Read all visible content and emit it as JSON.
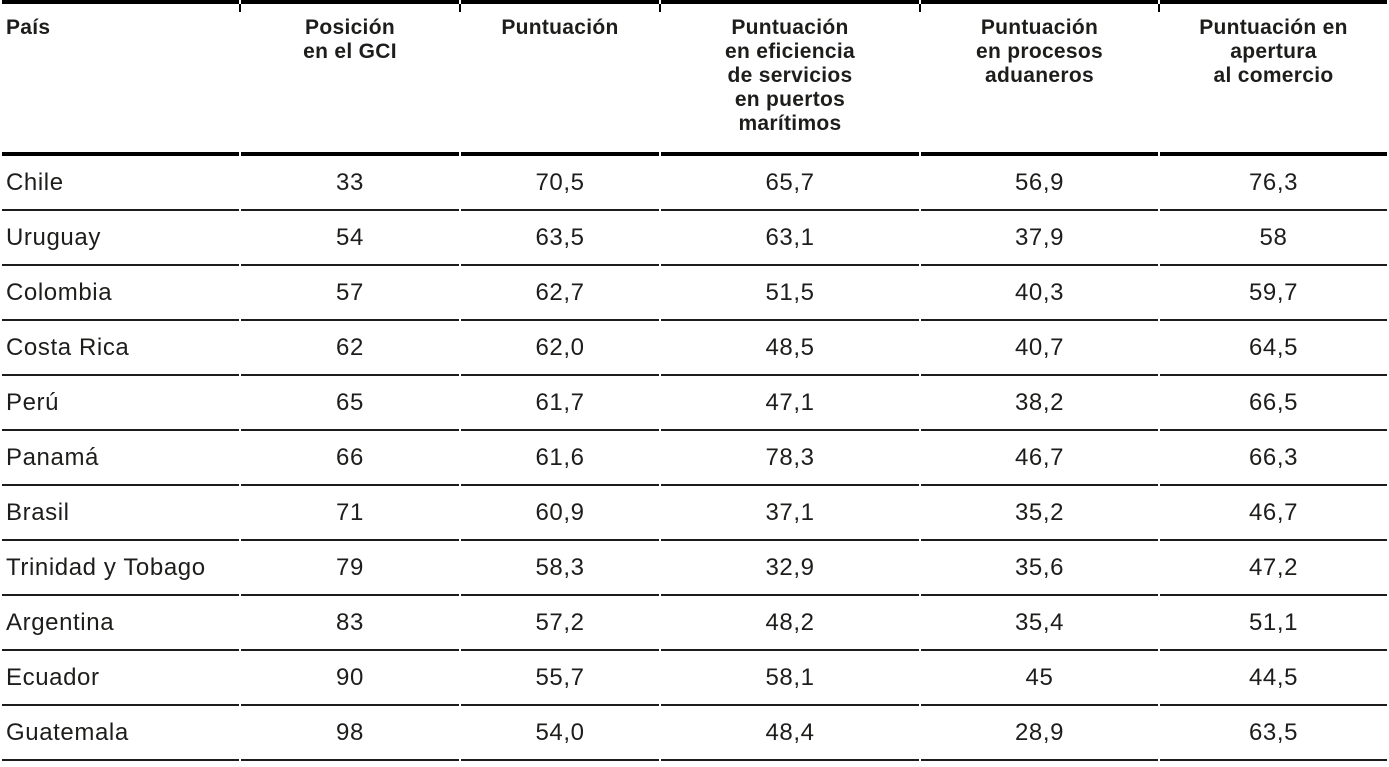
{
  "table": {
    "colors": {
      "text": "#1d1d1b",
      "rule": "#000000",
      "background": "#ffffff"
    },
    "columns": [
      {
        "key": "country",
        "label": "País"
      },
      {
        "key": "rank",
        "label": "Posición\nen el GCI"
      },
      {
        "key": "score",
        "label": "Puntuación"
      },
      {
        "key": "ports",
        "label": "Puntuación\nen eficiencia\nde servicios\nen puertos\nmarítimos"
      },
      {
        "key": "customs",
        "label": "Puntuación\nen procesos\naduaneros"
      },
      {
        "key": "openness",
        "label": "Puntuación en\napertura\nal comercio"
      }
    ],
    "rows": [
      {
        "country": "Chile",
        "rank": "33",
        "score": "70,5",
        "ports": "65,7",
        "customs": "56,9",
        "openness": "76,3"
      },
      {
        "country": "Uruguay",
        "rank": "54",
        "score": "63,5",
        "ports": "63,1",
        "customs": "37,9",
        "openness": "58"
      },
      {
        "country": "Colombia",
        "rank": "57",
        "score": "62,7",
        "ports": "51,5",
        "customs": "40,3",
        "openness": "59,7"
      },
      {
        "country": "Costa Rica",
        "rank": "62",
        "score": "62,0",
        "ports": "48,5",
        "customs": "40,7",
        "openness": "64,5"
      },
      {
        "country": "Perú",
        "rank": "65",
        "score": "61,7",
        "ports": "47,1",
        "customs": "38,2",
        "openness": "66,5"
      },
      {
        "country": "Panamá",
        "rank": "66",
        "score": "61,6",
        "ports": "78,3",
        "customs": "46,7",
        "openness": "66,3"
      },
      {
        "country": "Brasil",
        "rank": "71",
        "score": "60,9",
        "ports": "37,1",
        "customs": "35,2",
        "openness": "46,7"
      },
      {
        "country": "Trinidad y Tobago",
        "rank": "79",
        "score": "58,3",
        "ports": "32,9",
        "customs": "35,6",
        "openness": "47,2"
      },
      {
        "country": "Argentina",
        "rank": "83",
        "score": "57,2",
        "ports": "48,2",
        "customs": "35,4",
        "openness": "51,1"
      },
      {
        "country": "Ecuador",
        "rank": "90",
        "score": "55,7",
        "ports": "58,1",
        "customs": "45",
        "openness": "44,5"
      },
      {
        "country": "Guatemala",
        "rank": "98",
        "score": "54,0",
        "ports": "48,4",
        "customs": "28,9",
        "openness": "63,5"
      }
    ]
  }
}
